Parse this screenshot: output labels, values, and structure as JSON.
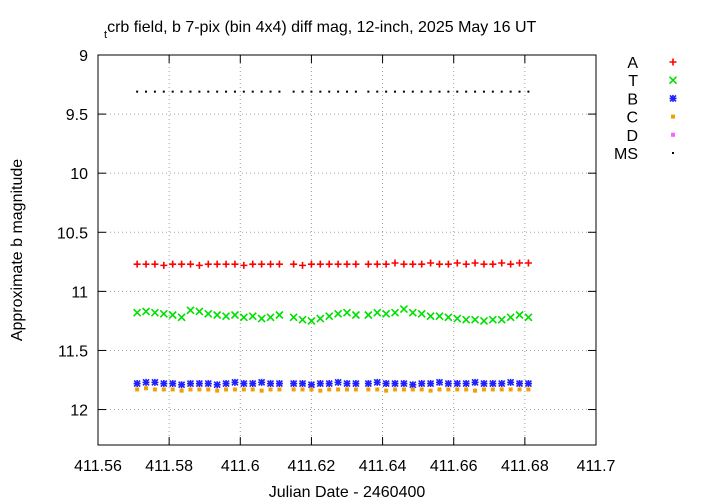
{
  "chart_data": {
    "type": "scatter",
    "title": [
      {
        "text": "t",
        "sub": true
      },
      {
        "text": "crb field, b 7-pix (bin 4x4) diff mag, 12-inch, 2025 May 16 UT",
        "sub": false
      }
    ],
    "x_label": "Julian Date - 2460400",
    "y_label": "Approximate b magnitude",
    "xlim": [
      411.56,
      411.7
    ],
    "xticks": [
      411.56,
      411.58,
      411.6,
      411.62,
      411.64,
      411.66,
      411.68,
      411.7
    ],
    "ylim": [
      9,
      12.3
    ],
    "yticks": [
      9,
      9.5,
      10,
      10.5,
      11,
      11.5,
      12
    ],
    "y_reversed": true,
    "grid": true,
    "legend": "right",
    "x": [
      411.571,
      411.5735,
      411.576,
      411.5785,
      411.581,
      411.5835,
      411.586,
      411.5885,
      411.591,
      411.5935,
      411.596,
      411.5985,
      411.601,
      411.6035,
      411.606,
      411.6085,
      411.611,
      411.615,
      411.6175,
      411.62,
      411.6225,
      411.625,
      411.6275,
      411.63,
      411.6325,
      411.636,
      411.6385,
      411.641,
      411.6435,
      411.646,
      411.6485,
      411.651,
      411.6535,
      411.656,
      411.6585,
      411.661,
      411.6635,
      411.666,
      411.6685,
      411.671,
      411.6735,
      411.676,
      411.6785,
      411.681
    ],
    "series": [
      {
        "name": "A",
        "color": "#ff0000",
        "marker": "plus",
        "values": [
          10.77,
          10.77,
          10.77,
          10.78,
          10.77,
          10.77,
          10.77,
          10.78,
          10.77,
          10.77,
          10.77,
          10.77,
          10.78,
          10.77,
          10.77,
          10.77,
          10.77,
          10.77,
          10.78,
          10.77,
          10.77,
          10.77,
          10.77,
          10.77,
          10.77,
          10.77,
          10.77,
          10.77,
          10.76,
          10.77,
          10.77,
          10.77,
          10.76,
          10.77,
          10.77,
          10.76,
          10.77,
          10.76,
          10.77,
          10.77,
          10.76,
          10.77,
          10.76,
          10.76
        ]
      },
      {
        "name": "T",
        "color": "#00e000",
        "marker": "cross",
        "values": [
          11.18,
          11.17,
          11.18,
          11.19,
          11.2,
          11.22,
          11.16,
          11.17,
          11.19,
          11.2,
          11.21,
          11.2,
          11.22,
          11.21,
          11.23,
          11.22,
          11.2,
          11.22,
          11.24,
          11.25,
          11.23,
          11.21,
          11.19,
          11.18,
          11.2,
          11.2,
          11.18,
          11.19,
          11.18,
          11.15,
          11.18,
          11.19,
          11.21,
          11.21,
          11.22,
          11.23,
          11.24,
          11.24,
          11.25,
          11.24,
          11.24,
          11.22,
          11.2,
          11.22
        ]
      },
      {
        "name": "B",
        "color": "#2020ff",
        "marker": "star",
        "values": [
          11.78,
          11.77,
          11.77,
          11.78,
          11.78,
          11.79,
          11.78,
          11.78,
          11.78,
          11.79,
          11.78,
          11.77,
          11.78,
          11.78,
          11.77,
          11.78,
          11.78,
          11.78,
          11.78,
          11.79,
          11.78,
          11.78,
          11.77,
          11.78,
          11.78,
          11.78,
          11.77,
          11.78,
          11.78,
          11.78,
          11.79,
          11.78,
          11.78,
          11.77,
          11.78,
          11.78,
          11.78,
          11.77,
          11.78,
          11.78,
          11.78,
          11.77,
          11.78,
          11.78
        ]
      },
      {
        "name": "C",
        "color": "#f0a000",
        "marker": "square",
        "values": [
          11.83,
          11.82,
          11.83,
          11.83,
          11.83,
          11.84,
          11.83,
          11.83,
          11.83,
          11.84,
          11.83,
          11.83,
          11.83,
          11.83,
          11.84,
          11.83,
          11.83,
          11.83,
          11.83,
          11.83,
          11.84,
          11.83,
          11.83,
          11.83,
          11.83,
          11.83,
          11.83,
          11.84,
          11.83,
          11.83,
          11.83,
          11.83,
          11.84,
          11.83,
          11.83,
          11.83,
          11.83,
          11.84,
          11.83,
          11.83,
          11.83,
          11.83,
          11.83,
          11.83
        ]
      },
      {
        "name": "D",
        "color": "#ff60ff",
        "marker": "square",
        "values": [
          null,
          null,
          null,
          null,
          null,
          null,
          null,
          null,
          null,
          null,
          null,
          null,
          null,
          null,
          null,
          null,
          null,
          null,
          null,
          null,
          null,
          null,
          null,
          null,
          null,
          null,
          null,
          null,
          null,
          null,
          null,
          null,
          null,
          null,
          null,
          null,
          null,
          null,
          null,
          null,
          null,
          null,
          null,
          null
        ]
      },
      {
        "name": "MS",
        "color": "#000000",
        "marker": "dot",
        "values": [
          9.31,
          9.31,
          9.31,
          9.31,
          9.31,
          9.31,
          9.31,
          9.31,
          9.31,
          9.31,
          9.31,
          9.31,
          9.31,
          9.31,
          9.31,
          9.31,
          9.31,
          9.31,
          9.31,
          9.31,
          9.31,
          9.31,
          9.31,
          9.31,
          9.31,
          9.31,
          9.31,
          9.31,
          9.31,
          9.31,
          9.31,
          9.31,
          9.31,
          9.31,
          9.31,
          9.31,
          9.31,
          9.31,
          9.31,
          9.31,
          9.31,
          9.31,
          9.31,
          9.31
        ]
      }
    ]
  }
}
